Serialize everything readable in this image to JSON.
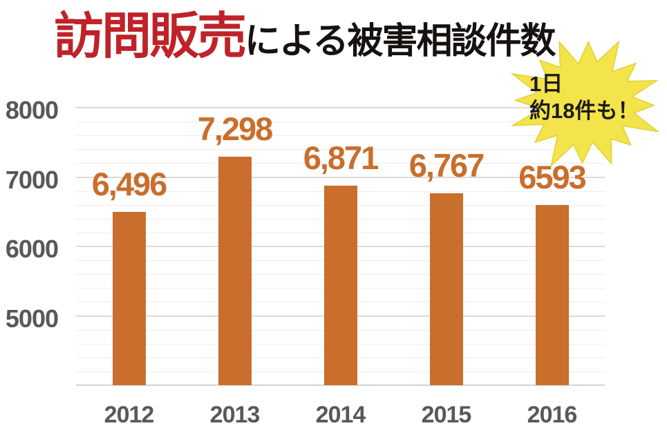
{
  "title": {
    "highlight": "訪問販売",
    "rest": "による被害相談件数"
  },
  "badge": {
    "line1": "1日",
    "line2": "約18件も！",
    "bg_color": "#F2E44A",
    "border_color": "#E0D034",
    "text_color": "#1d1b18"
  },
  "colors": {
    "background": "#FFFFFF",
    "bar": "#C96E2C",
    "value_label": "#C96E2C",
    "title_highlight": "#BF2228",
    "title_rest": "#151210",
    "axis_label": "#595757",
    "grid_minor": "#EEEDED",
    "grid_major": "#DBDADA",
    "baseline": "#D5D4D4"
  },
  "chart_data": {
    "type": "bar",
    "title": "訪問販売による被害相談件数",
    "categories": [
      "2012",
      "2013",
      "2014",
      "2015",
      "2016"
    ],
    "values": [
      6496,
      7298,
      6871,
      6767,
      6593
    ],
    "value_labels": [
      "6,496",
      "7,298",
      "6,871",
      "6,767",
      "6593"
    ],
    "y_ticks": [
      5000,
      6000,
      7000,
      8000
    ],
    "ylim": [
      4000,
      8200
    ],
    "xlabel": "",
    "ylabel": "",
    "grid": true,
    "legend": false,
    "annotation": "1日約18件も！"
  }
}
